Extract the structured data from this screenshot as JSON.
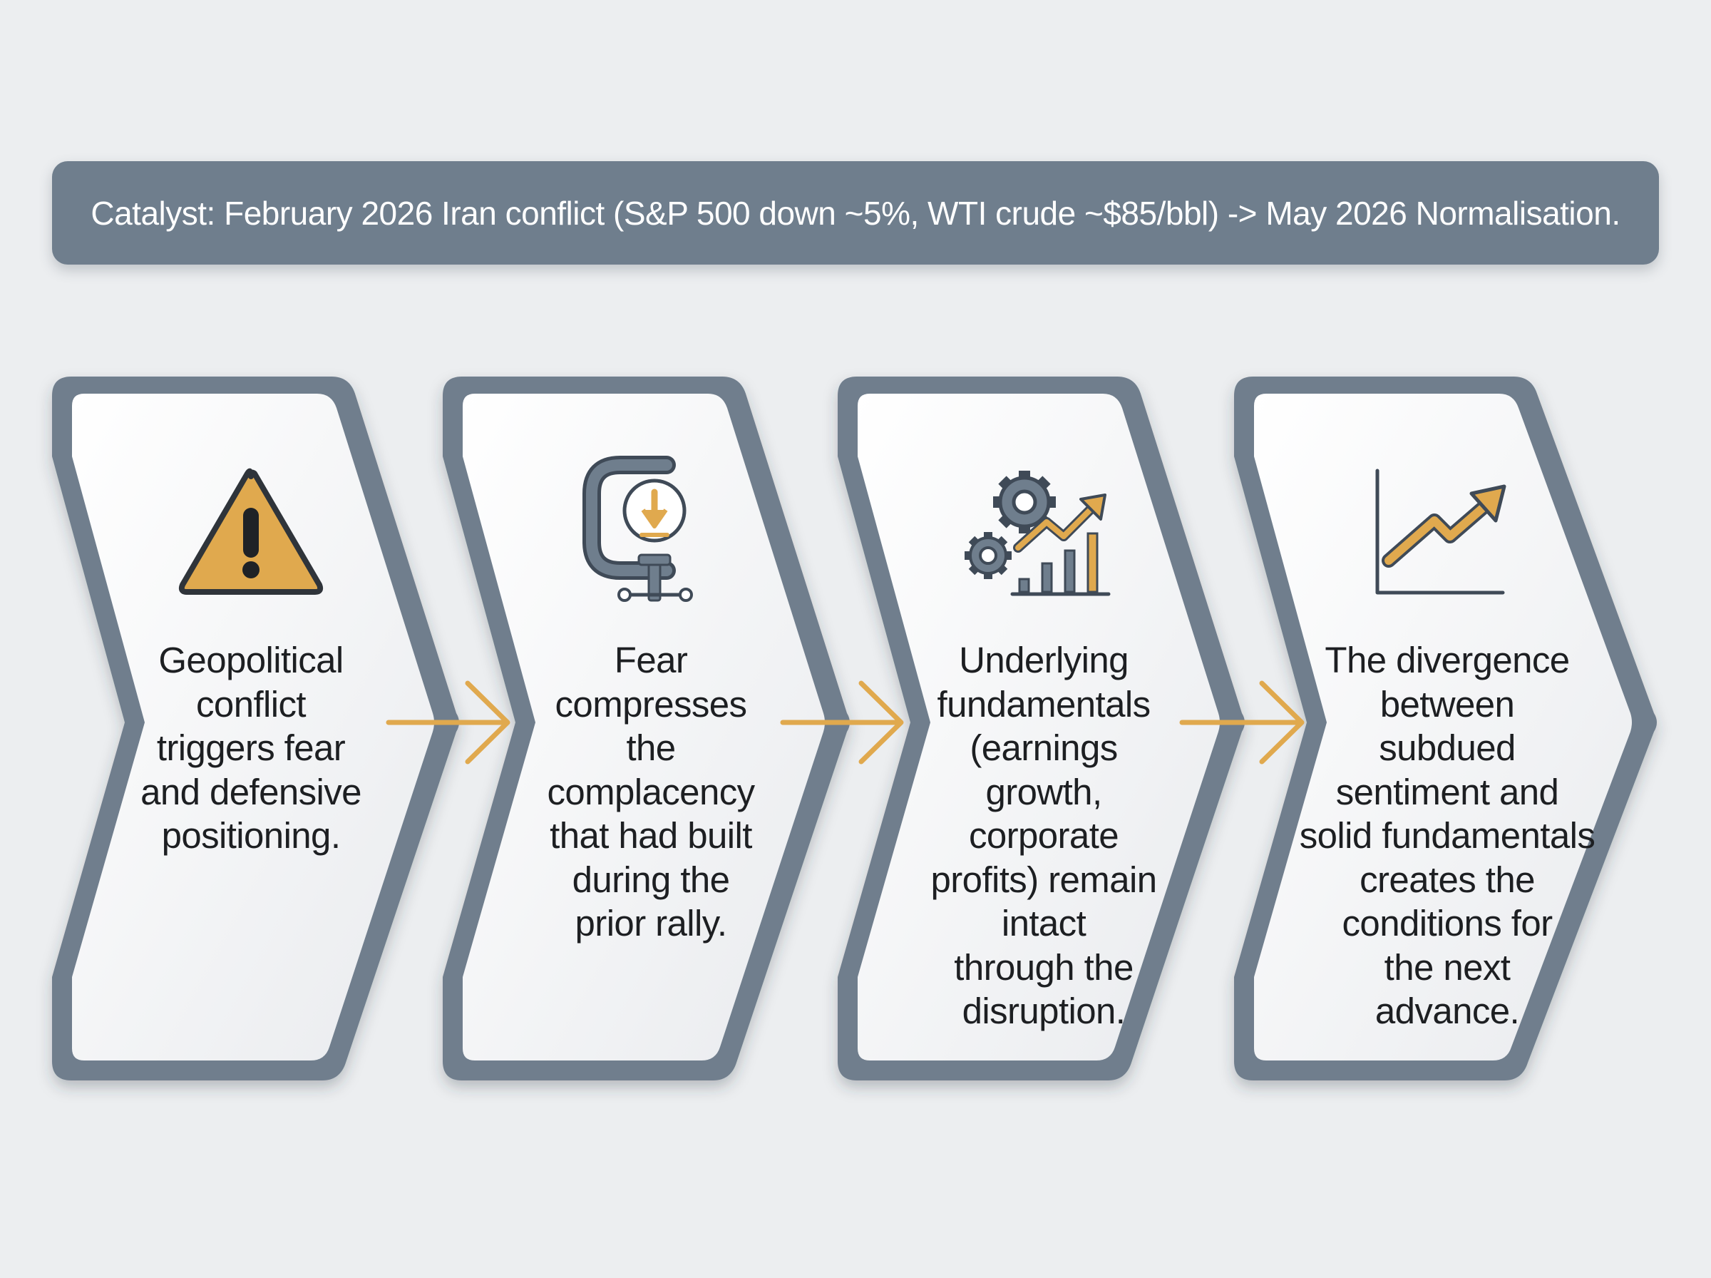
{
  "banner": {
    "text": "Catalyst: February 2026 Iran conflict (S&P 500 down ~5%, WTI crude ~$85/bbl) -> May 2026 Normalisation."
  },
  "steps": [
    {
      "icon": "warning-icon",
      "text": "Geopolitical\nconflict\ntriggers fear\nand defensive\npositioning."
    },
    {
      "icon": "clamp-icon",
      "text": "Fear\ncompresses\nthe\ncomplacency\nthat had built\nduring the\nprior rally."
    },
    {
      "icon": "gears-growth-icon",
      "text": "Underlying\nfundamentals\n(earnings\ngrowth,\ncorporate\nprofits) remain\nintact\nthrough the\ndisruption."
    },
    {
      "icon": "uptrend-chart-icon",
      "text": "The divergence\nbetween\nsubdued\nsentiment and\nsolid fundamentals\ncreates the\nconditions for\nthe next\nadvance."
    }
  ],
  "colors": {
    "frame": "#6f7e8d",
    "accent": "#e0a94e",
    "icon_stroke": "#3f4a57",
    "background": "#eceef0"
  }
}
